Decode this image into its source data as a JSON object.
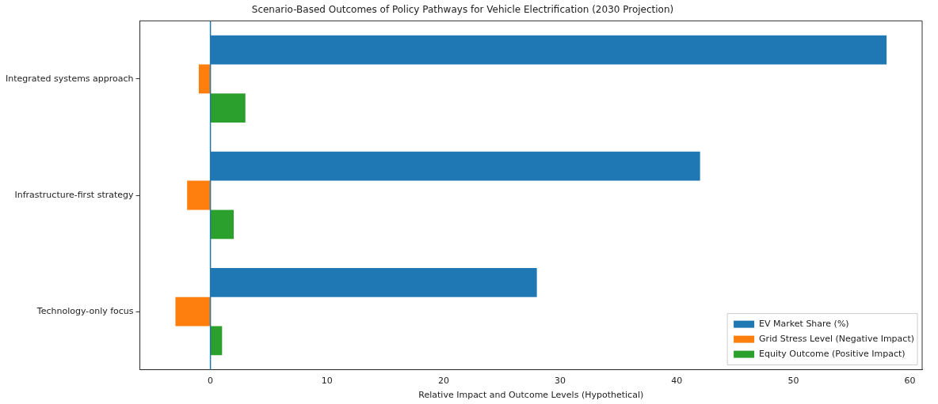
{
  "chart_data": {
    "type": "bar",
    "orientation": "horizontal",
    "title": "Scenario-Based Outcomes of Policy Pathways for Vehicle Electrification (2030 Projection)",
    "xlabel": "Relative Impact and Outcome Levels (Hypothetical)",
    "categories": [
      "Integrated systems approach",
      "Infrastructure-first strategy",
      "Technology-only focus"
    ],
    "series": [
      {
        "name": "EV Market Share (%)",
        "color": "#1f77b4",
        "values": [
          58,
          42,
          28
        ]
      },
      {
        "name": "Grid Stress Level (Negative Impact)",
        "color": "#ff7f0e",
        "values": [
          -1,
          -2,
          -3
        ]
      },
      {
        "name": "Equity Outcome (Positive Impact)",
        "color": "#2ca02c",
        "values": [
          3,
          2,
          1
        ]
      }
    ],
    "xlim": [
      -6.05,
      61.05
    ],
    "xticks": [
      0,
      10,
      20,
      30,
      40,
      50,
      60
    ],
    "ref_lines": [
      {
        "axis": "x",
        "value": 0,
        "color": "#1f77b4"
      }
    ],
    "grid": false,
    "legend": "bottom right"
  }
}
